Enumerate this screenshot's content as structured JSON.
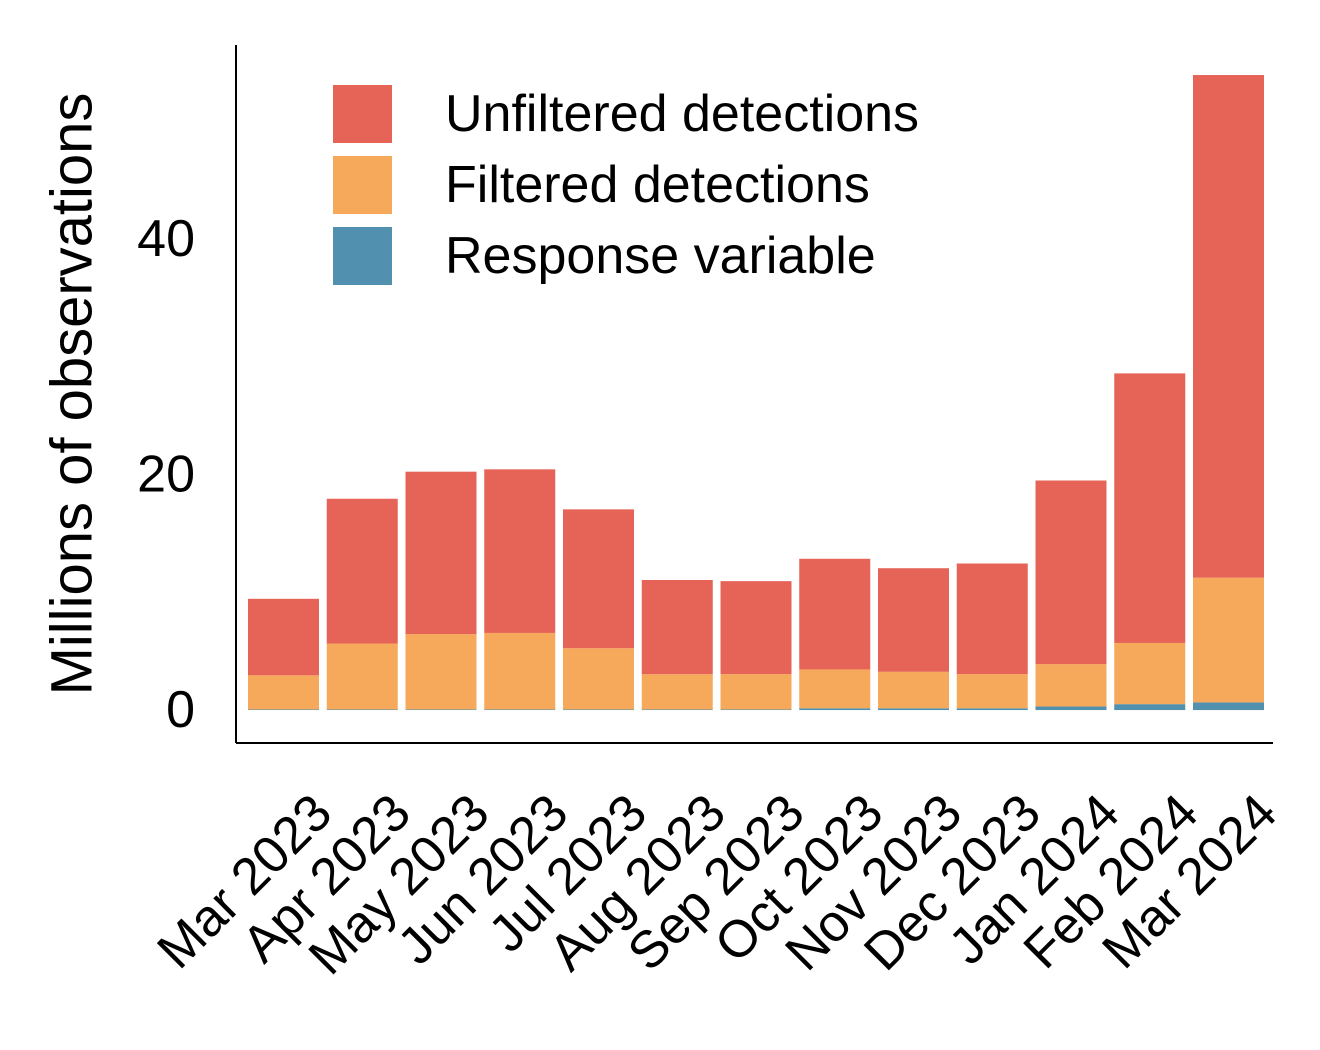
{
  "chart_data": {
    "type": "bar",
    "stacked": true,
    "title": "",
    "xlabel": "",
    "ylabel": "Millions of observations",
    "ylim": [
      -2.8,
      56.5
    ],
    "yticks": [
      0,
      20,
      40
    ],
    "ytick_labels": [
      "0",
      "20",
      "40"
    ],
    "grid": false,
    "legend_position": "top-left",
    "categories": [
      "Mar 2023",
      "Apr 2023",
      "May 2023",
      "Jun 2023",
      "Jul 2023",
      "Aug 2023",
      "Sep 2023",
      "Oct 2023",
      "Nov 2023",
      "Dec 2023",
      "Jan 2024",
      "Feb 2024",
      "Mar 2024"
    ],
    "series": [
      {
        "name": "Response variable",
        "color": "#5190AE",
        "values": [
          0.05,
          0.05,
          0.05,
          0.05,
          0.05,
          0.05,
          0.05,
          0.15,
          0.15,
          0.15,
          0.3,
          0.5,
          0.65
        ]
      },
      {
        "name": "Filtered detections",
        "color": "#F6A95A",
        "values": [
          2.9,
          5.6,
          6.4,
          6.5,
          5.2,
          3.0,
          3.0,
          3.3,
          3.1,
          2.9,
          3.6,
          5.2,
          10.6
        ]
      },
      {
        "name": "Unfiltered detections",
        "color": "#E66357",
        "values": [
          6.5,
          12.3,
          13.8,
          13.9,
          11.8,
          8.0,
          7.9,
          9.4,
          8.8,
          9.4,
          15.6,
          22.9,
          42.7
        ]
      }
    ],
    "legend_order": [
      "Unfiltered detections",
      "Filtered detections",
      "Response variable"
    ]
  }
}
